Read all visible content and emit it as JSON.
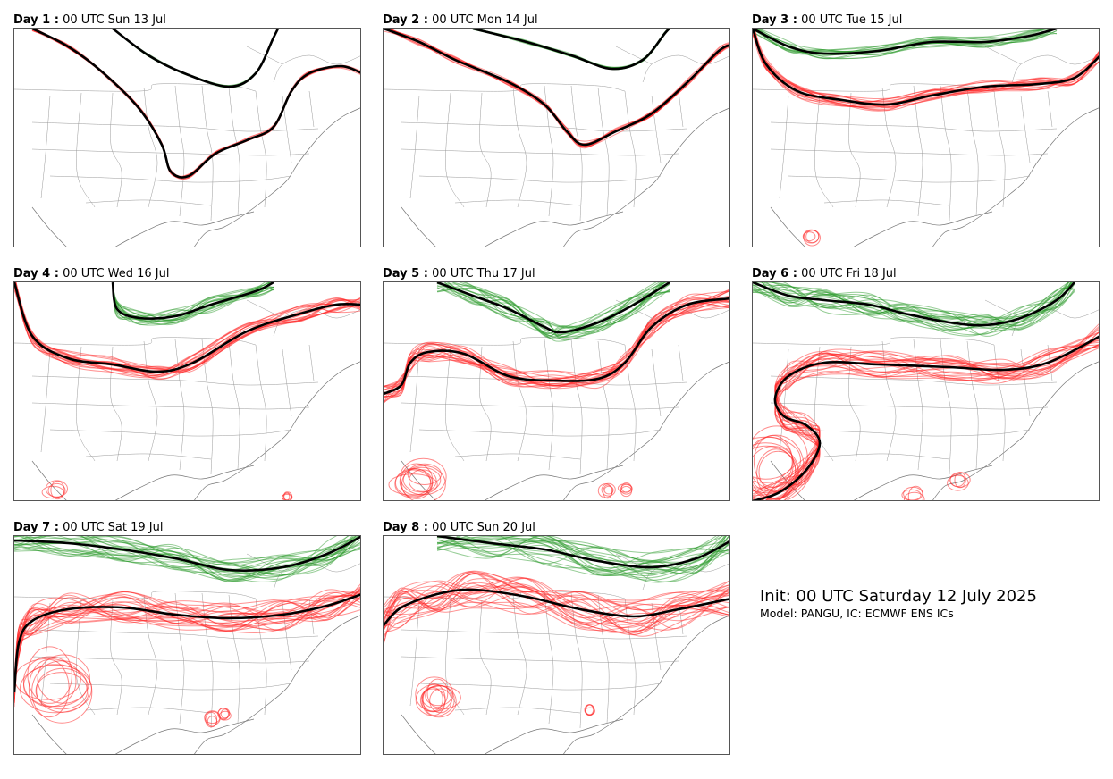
{
  "colors": {
    "upper_contour": "#2e9b2e",
    "lower_contour": "#ff2a2a",
    "ensemble_mean": "#000000",
    "borders": "#999999"
  },
  "panels": [
    {
      "day_label": "Day 1 :",
      "valid_time": "00 UTC Sun 13 Jul"
    },
    {
      "day_label": "Day 2 :",
      "valid_time": "00 UTC Mon 14 Jul"
    },
    {
      "day_label": "Day 3 :",
      "valid_time": "00 UTC Tue 15 Jul"
    },
    {
      "day_label": "Day 4 :",
      "valid_time": "00 UTC Wed 16 Jul"
    },
    {
      "day_label": "Day 5 :",
      "valid_time": "00 UTC Thu 17 Jul"
    },
    {
      "day_label": "Day 6 :",
      "valid_time": "00 UTC Fri 18 Jul"
    },
    {
      "day_label": "Day 7 :",
      "valid_time": "00 UTC Sat 19 Jul"
    },
    {
      "day_label": "Day 8 :",
      "valid_time": "00 UTC Sun 20 Jul"
    }
  ],
  "info": {
    "init": "Init: 00 UTC Saturday 12 July 2025",
    "model": "Model: PANGU, IC: ECMWF ENS ICs"
  }
}
